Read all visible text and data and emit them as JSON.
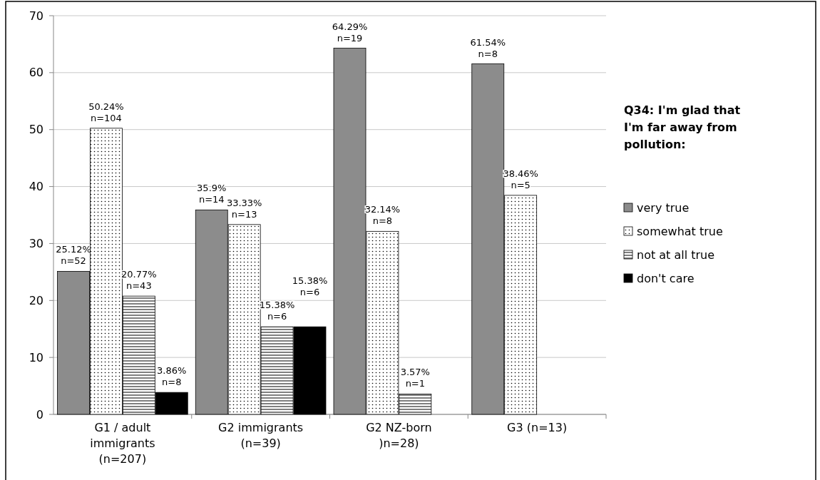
{
  "chart_data": {
    "type": "bar",
    "categories": [
      "G1 / adult immigrants (n=207)",
      "G2 immigrants (n=39)",
      "G2 NZ-born )n=28)",
      "G3 (n=13)"
    ],
    "legend_title": "Q34: I'm glad that I'm far away from pollution:",
    "series": [
      {
        "name": "very true",
        "color": "#8c8c8c",
        "values": [
          25.12,
          35.9,
          64.29,
          61.54
        ],
        "value_labels": [
          "25.12%\nn=52",
          "35.9%\nn=14",
          "64.29%\nn=19",
          "61.54%\nn=8"
        ]
      },
      {
        "name": "somewhat true",
        "color": "#000000",
        "values": [
          50.24,
          33.33,
          32.14,
          38.46
        ],
        "value_labels": [
          "50.24%\nn=104",
          "33.33%\nn=13",
          "32.14%\nn=8",
          "38.46%\nn=5"
        ]
      },
      {
        "name": "not at all true",
        "color": "#000000",
        "values": [
          20.77,
          15.38,
          3.57,
          null
        ],
        "value_labels": [
          "20.77%\nn=43",
          "15.38%\nn=6",
          "3.57%\nn=1",
          null
        ]
      },
      {
        "name": "don't care",
        "color": "#000000",
        "values": [
          3.86,
          15.38,
          null,
          null
        ],
        "value_labels": [
          "3.86%\nn=8",
          "15.38%\nn=6",
          null,
          null
        ]
      }
    ],
    "ylim": [
      0,
      70
    ],
    "yticks": [
      0,
      10,
      20,
      30,
      40,
      50,
      60,
      70
    ],
    "grid": "y",
    "legend": "right"
  }
}
